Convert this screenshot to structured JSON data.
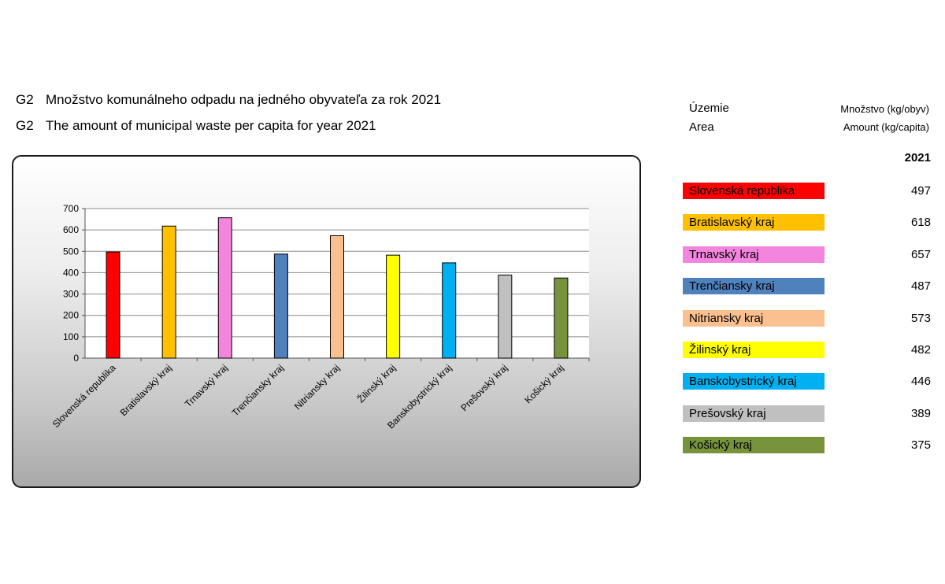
{
  "titles": {
    "code": "G2",
    "sk": "Množstvo komunálneho odpadu na jedného obyvateľa za rok 2021",
    "en": "The amount of municipal waste per capita for year 2021"
  },
  "table": {
    "area_sk": "Územie",
    "area_en": "Area",
    "amount_sk": "Množstvo (kg/obyv)",
    "amount_en": "Amount (kg/capita)",
    "year": "2021",
    "rows": [
      {
        "name": "Slovenská republika",
        "value": "497",
        "color": "#ff0000",
        "text_color": "#000000"
      },
      {
        "name": "Bratislavský kraj",
        "value": "618",
        "color": "#ffc000",
        "text_color": "#000000"
      },
      {
        "name": "Trnavský kraj",
        "value": "657",
        "color": "#f485df",
        "text_color": "#000000"
      },
      {
        "name": "Trenčiansky kraj",
        "value": "487",
        "color": "#4f81bd",
        "text_color": "#000000"
      },
      {
        "name": "Nitriansky kraj",
        "value": "573",
        "color": "#fac090",
        "text_color": "#000000"
      },
      {
        "name": "Žilinský kraj",
        "value": "482",
        "color": "#ffff00",
        "text_color": "#000000"
      },
      {
        "name": "Banskobystrický kraj",
        "value": "446",
        "color": "#00b0f0",
        "text_color": "#000000"
      },
      {
        "name": "Prešovský kraj",
        "value": "389",
        "color": "#c0c0c0",
        "text_color": "#000000"
      },
      {
        "name": "Košický kraj",
        "value": "375",
        "color": "#77933c",
        "text_color": "#000000"
      }
    ]
  },
  "chart_data": {
    "type": "bar",
    "categories": [
      "Slovenská republika",
      "Bratislavský kraj",
      "Trnavský kraj",
      "Trenčiansky kraj",
      "Nitriansky kraj",
      "Žilinský kraj",
      "Banskobystrický kraj",
      "Prešovský kraj",
      "Košický kraj"
    ],
    "values": [
      497,
      618,
      657,
      487,
      573,
      482,
      446,
      389,
      375
    ],
    "colors": [
      "#ff0000",
      "#ffc000",
      "#f485df",
      "#4f81bd",
      "#fac090",
      "#ffff00",
      "#00b0f0",
      "#c0c0c0",
      "#77933c"
    ],
    "title": "",
    "xlabel": "",
    "ylabel": "",
    "ylim": [
      0,
      700
    ],
    "yticks": [
      0,
      100,
      200,
      300,
      400,
      500,
      600,
      700
    ],
    "grid": true,
    "legend": "none"
  }
}
